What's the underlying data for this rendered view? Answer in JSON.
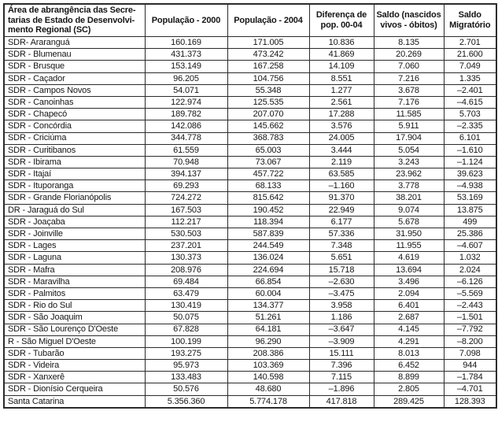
{
  "table": {
    "headers": [
      "Área de abrangência das Secre-\ntarias de Estado de Desenvolvi-\nmento Regional (SC)",
      "População - 2000",
      "População - 2004",
      "Diferença de\npop. 00-04",
      "Saldo (nascidos\nvivos - óbitos)",
      "Saldo\nMigratório"
    ],
    "rows": [
      [
        "SDR- Araranguá",
        "160.169",
        "171.005",
        "10.836",
        "8.135",
        "2.701"
      ],
      [
        "SDR - Blumenau",
        "431.373",
        "473.242",
        "41.869",
        "20.269",
        "21.600"
      ],
      [
        "SDR - Brusque",
        "153.149",
        "167.258",
        "14.109",
        "7.060",
        "7.049"
      ],
      [
        "SDR - Caçador",
        "96.205",
        "104.756",
        "8.551",
        "7.216",
        "1.335"
      ],
      [
        "SDR - Campos Novos",
        "54.071",
        "55.348",
        "1.277",
        "3.678",
        "–2.401"
      ],
      [
        "SDR - Canoinhas",
        "122.974",
        "125.535",
        "2.561",
        "7.176",
        "–4.615"
      ],
      [
        "SDR - Chapecó",
        "189.782",
        "207.070",
        "17.288",
        "11.585",
        "5.703"
      ],
      [
        "SDR - Concórdia",
        "142.086",
        "145.662",
        "3.576",
        "5.911",
        "–2.335"
      ],
      [
        "SDR - Criciúma",
        "344.778",
        "368.783",
        "24.005",
        "17.904",
        "6.101"
      ],
      [
        "SDR - Curitibanos",
        "61.559",
        "65.003",
        "3.444",
        "5.054",
        "–1.610"
      ],
      [
        "SDR - Ibirama",
        "70.948",
        "73.067",
        "2.119",
        "3.243",
        "–1.124"
      ],
      [
        "SDR - Itajaí",
        "394.137",
        "457.722",
        "63.585",
        "23.962",
        "39.623"
      ],
      [
        "SDR - Ituporanga",
        "69.293",
        "68.133",
        "–1.160",
        "3.778",
        "–4.938"
      ],
      [
        "SDR - Grande Florianópolis",
        "724.272",
        "815.642",
        "91.370",
        "38.201",
        "53.169"
      ],
      [
        "DR - Jaraguá do Sul",
        "167.503",
        "190.452",
        "22.949",
        "9.074",
        "13.875"
      ],
      [
        "SDR - Joaçaba",
        "112.217",
        "118.394",
        "6.177",
        "5.678",
        "499"
      ],
      [
        "SDR - Joinville",
        "530.503",
        "587.839",
        "57.336",
        "31.950",
        "25.386"
      ],
      [
        "SDR - Lages",
        "237.201",
        "244.549",
        "7.348",
        "11.955",
        "–4.607"
      ],
      [
        "SDR - Laguna",
        "130.373",
        "136.024",
        "5.651",
        "4.619",
        "1.032"
      ],
      [
        "SDR - Mafra",
        "208.976",
        "224.694",
        "15.718",
        "13.694",
        "2.024"
      ],
      [
        "SDR - Maravilha",
        "69.484",
        "66.854",
        "–2.630",
        "3.496",
        "–6.126"
      ],
      [
        "SDR - Palmitos",
        "63.479",
        "60.004",
        "–3.475",
        "2.094",
        "–5.569"
      ],
      [
        "SDR - Rio do Sul",
        "130.419",
        "134.377",
        "3.958",
        "6.401",
        "–2.443"
      ],
      [
        "SDR - São Joaquim",
        "50.075",
        "51.261",
        "1.186",
        "2.687",
        "–1.501"
      ],
      [
        "SDR - São Lourenço D'Oeste",
        "67.828",
        "64.181",
        "–3.647",
        "4.145",
        "–7.792"
      ],
      [
        "R - São Miguel D'Oeste",
        "100.199",
        "96.290",
        "–3.909",
        "4.291",
        "–8.200"
      ],
      [
        "SDR - Tubarão",
        "193.275",
        "208.386",
        "15.111",
        "8.013",
        "7.098"
      ],
      [
        "SDR - Videira",
        "95.973",
        "103.369",
        "7.396",
        "6.452",
        "944"
      ],
      [
        "SDR - Xanxerê",
        "133.483",
        "140.598",
        "7.115",
        "8.899",
        "–1.784"
      ],
      [
        "SDR - Dionísio Cerqueira",
        "50.576",
        "48.680",
        "–1.896",
        "2.805",
        "–4.701"
      ],
      [
        "Santa Catarina",
        "5.356.360",
        "5.774.178",
        "417.818",
        "289.425",
        "128.393"
      ]
    ]
  }
}
